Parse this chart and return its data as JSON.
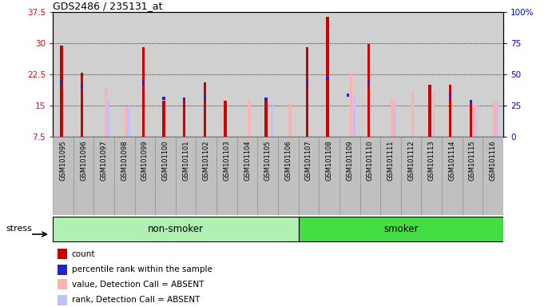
{
  "title": "GDS2486 / 235131_at",
  "samples": [
    "GSM101095",
    "GSM101096",
    "GSM101097",
    "GSM101098",
    "GSM101099",
    "GSM101100",
    "GSM101101",
    "GSM101102",
    "GSM101103",
    "GSM101104",
    "GSM101105",
    "GSM101106",
    "GSM101107",
    "GSM101108",
    "GSM101109",
    "GSM101110",
    "GSM101111",
    "GSM101112",
    "GSM101113",
    "GSM101114",
    "GSM101115",
    "GSM101116"
  ],
  "red_values": [
    29.5,
    23.0,
    0,
    0,
    29.0,
    16.2,
    16.1,
    20.5,
    16.1,
    0,
    16.2,
    0,
    29.0,
    36.5,
    0,
    29.8,
    0,
    0,
    20.0,
    20.0,
    16.0,
    0
  ],
  "blue_values": [
    20.5,
    19.5,
    0,
    0,
    20.5,
    16.8,
    16.5,
    17.0,
    0,
    0,
    16.5,
    0,
    20.5,
    21.5,
    17.5,
    20.5,
    0,
    0,
    0,
    17.5,
    16.0,
    0
  ],
  "pink_values": [
    0,
    0,
    19.5,
    14.8,
    0,
    0,
    0,
    0,
    0,
    16.2,
    0,
    15.3,
    0,
    0,
    23.0,
    0,
    16.5,
    18.5,
    18.5,
    0,
    15.2,
    16.2
  ],
  "lightblue_values": [
    0,
    0,
    16.8,
    14.5,
    0,
    0,
    0,
    0,
    0,
    0,
    15.5,
    0,
    0,
    0,
    17.0,
    0,
    16.0,
    0,
    0,
    0,
    15.0,
    16.0
  ],
  "non_smoker_count": 12,
  "smoker_count": 10,
  "total_count": 22,
  "ylim_left": [
    7.5,
    37.5
  ],
  "ylim_right": [
    0,
    100
  ],
  "yticks_left": [
    7.5,
    15.0,
    22.5,
    30.0,
    37.5
  ],
  "yticks_right": [
    0,
    25,
    50,
    75,
    100
  ],
  "bar_color_red": "#cc0000",
  "bar_color_blue": "#2222cc",
  "bar_color_pink": "#ffb0b0",
  "bar_color_lightblue": "#c0c0ff",
  "bg_color": "#d0d0d0",
  "nonsmoker_color": "#b0f0b0",
  "smoker_color": "#44dd44",
  "tick_bg_color": "#c0c0c0"
}
